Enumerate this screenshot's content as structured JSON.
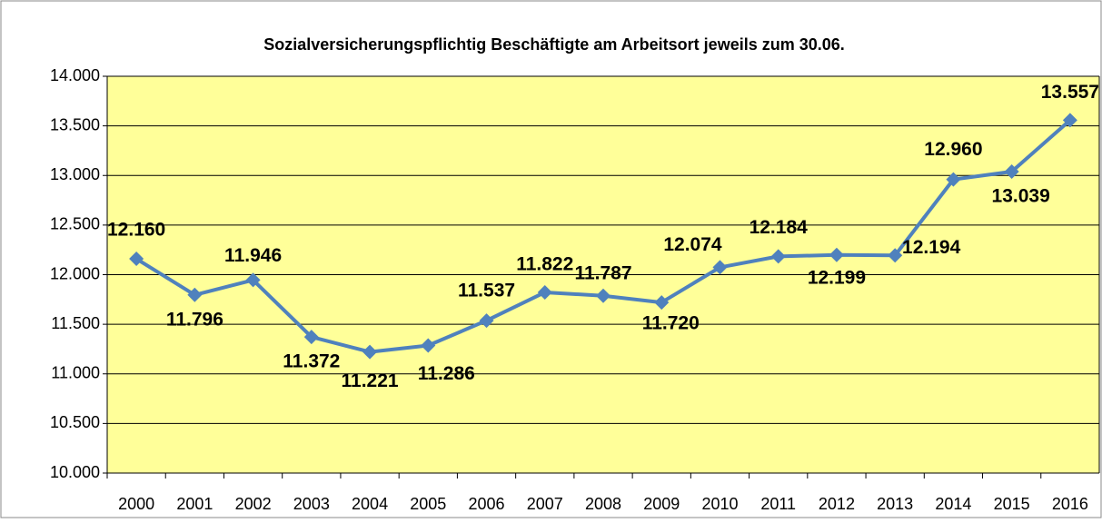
{
  "chart_data": {
    "type": "line",
    "title": "Sozialversicherungspflichtig Beschäftigte am Arbeitsort jeweils zum 30.06.",
    "categories": [
      "2000",
      "2001",
      "2002",
      "2003",
      "2004",
      "2005",
      "2006",
      "2007",
      "2008",
      "2009",
      "2010",
      "2011",
      "2012",
      "2013",
      "2014",
      "2015",
      "2016"
    ],
    "series": [
      {
        "name": "Beschäftigte",
        "color": "#4f81bd",
        "values": [
          12160,
          11796,
          11946,
          11372,
          11221,
          11286,
          11537,
          11822,
          11787,
          11720,
          12074,
          12184,
          12199,
          12194,
          12960,
          13039,
          13557
        ],
        "value_labels": [
          "12.160",
          "11.796",
          "11.946",
          "11.372",
          "11.221",
          "11.286",
          "11.537",
          "11.822",
          "11.787",
          "11.720",
          "12.074",
          "12.184",
          "12.199",
          "12.194",
          "12.960",
          "13.039",
          "13.557"
        ]
      }
    ],
    "ylim": [
      10000,
      14000
    ],
    "yticks": [
      {
        "value": 10000,
        "label": "10.000"
      },
      {
        "value": 10500,
        "label": "10.500"
      },
      {
        "value": 11000,
        "label": "11.000"
      },
      {
        "value": 11500,
        "label": "11.500"
      },
      {
        "value": 12000,
        "label": "12.000"
      },
      {
        "value": 12500,
        "label": "12.500"
      },
      {
        "value": 13000,
        "label": "13.000"
      },
      {
        "value": 13500,
        "label": "13.500"
      },
      {
        "value": 14000,
        "label": "14.000"
      }
    ],
    "grid": true,
    "plot_background": "#ffff99"
  }
}
